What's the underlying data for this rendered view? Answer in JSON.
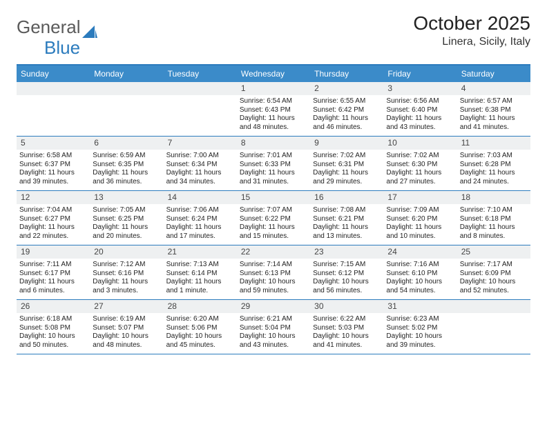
{
  "logo": {
    "text1": "General",
    "text2": "Blue"
  },
  "title": "October 2025",
  "location": "Linera, Sicily, Italy",
  "colors": {
    "header_bg": "#3b8bc9",
    "border": "#2b7bbd",
    "daynum_bg": "#eef0f1",
    "text": "#222222",
    "logo_gray": "#5a5a5a"
  },
  "day_names": [
    "Sunday",
    "Monday",
    "Tuesday",
    "Wednesday",
    "Thursday",
    "Friday",
    "Saturday"
  ],
  "weeks": [
    [
      null,
      null,
      null,
      {
        "n": "1",
        "sr": "6:54 AM",
        "ss": "6:43 PM",
        "dl": "11 hours and 48 minutes."
      },
      {
        "n": "2",
        "sr": "6:55 AM",
        "ss": "6:42 PM",
        "dl": "11 hours and 46 minutes."
      },
      {
        "n": "3",
        "sr": "6:56 AM",
        "ss": "6:40 PM",
        "dl": "11 hours and 43 minutes."
      },
      {
        "n": "4",
        "sr": "6:57 AM",
        "ss": "6:38 PM",
        "dl": "11 hours and 41 minutes."
      }
    ],
    [
      {
        "n": "5",
        "sr": "6:58 AM",
        "ss": "6:37 PM",
        "dl": "11 hours and 39 minutes."
      },
      {
        "n": "6",
        "sr": "6:59 AM",
        "ss": "6:35 PM",
        "dl": "11 hours and 36 minutes."
      },
      {
        "n": "7",
        "sr": "7:00 AM",
        "ss": "6:34 PM",
        "dl": "11 hours and 34 minutes."
      },
      {
        "n": "8",
        "sr": "7:01 AM",
        "ss": "6:33 PM",
        "dl": "11 hours and 31 minutes."
      },
      {
        "n": "9",
        "sr": "7:02 AM",
        "ss": "6:31 PM",
        "dl": "11 hours and 29 minutes."
      },
      {
        "n": "10",
        "sr": "7:02 AM",
        "ss": "6:30 PM",
        "dl": "11 hours and 27 minutes."
      },
      {
        "n": "11",
        "sr": "7:03 AM",
        "ss": "6:28 PM",
        "dl": "11 hours and 24 minutes."
      }
    ],
    [
      {
        "n": "12",
        "sr": "7:04 AM",
        "ss": "6:27 PM",
        "dl": "11 hours and 22 minutes."
      },
      {
        "n": "13",
        "sr": "7:05 AM",
        "ss": "6:25 PM",
        "dl": "11 hours and 20 minutes."
      },
      {
        "n": "14",
        "sr": "7:06 AM",
        "ss": "6:24 PM",
        "dl": "11 hours and 17 minutes."
      },
      {
        "n": "15",
        "sr": "7:07 AM",
        "ss": "6:22 PM",
        "dl": "11 hours and 15 minutes."
      },
      {
        "n": "16",
        "sr": "7:08 AM",
        "ss": "6:21 PM",
        "dl": "11 hours and 13 minutes."
      },
      {
        "n": "17",
        "sr": "7:09 AM",
        "ss": "6:20 PM",
        "dl": "11 hours and 10 minutes."
      },
      {
        "n": "18",
        "sr": "7:10 AM",
        "ss": "6:18 PM",
        "dl": "11 hours and 8 minutes."
      }
    ],
    [
      {
        "n": "19",
        "sr": "7:11 AM",
        "ss": "6:17 PM",
        "dl": "11 hours and 6 minutes."
      },
      {
        "n": "20",
        "sr": "7:12 AM",
        "ss": "6:16 PM",
        "dl": "11 hours and 3 minutes."
      },
      {
        "n": "21",
        "sr": "7:13 AM",
        "ss": "6:14 PM",
        "dl": "11 hours and 1 minute."
      },
      {
        "n": "22",
        "sr": "7:14 AM",
        "ss": "6:13 PM",
        "dl": "10 hours and 59 minutes."
      },
      {
        "n": "23",
        "sr": "7:15 AM",
        "ss": "6:12 PM",
        "dl": "10 hours and 56 minutes."
      },
      {
        "n": "24",
        "sr": "7:16 AM",
        "ss": "6:10 PM",
        "dl": "10 hours and 54 minutes."
      },
      {
        "n": "25",
        "sr": "7:17 AM",
        "ss": "6:09 PM",
        "dl": "10 hours and 52 minutes."
      }
    ],
    [
      {
        "n": "26",
        "sr": "6:18 AM",
        "ss": "5:08 PM",
        "dl": "10 hours and 50 minutes."
      },
      {
        "n": "27",
        "sr": "6:19 AM",
        "ss": "5:07 PM",
        "dl": "10 hours and 48 minutes."
      },
      {
        "n": "28",
        "sr": "6:20 AM",
        "ss": "5:06 PM",
        "dl": "10 hours and 45 minutes."
      },
      {
        "n": "29",
        "sr": "6:21 AM",
        "ss": "5:04 PM",
        "dl": "10 hours and 43 minutes."
      },
      {
        "n": "30",
        "sr": "6:22 AM",
        "ss": "5:03 PM",
        "dl": "10 hours and 41 minutes."
      },
      {
        "n": "31",
        "sr": "6:23 AM",
        "ss": "5:02 PM",
        "dl": "10 hours and 39 minutes."
      },
      null
    ]
  ],
  "labels": {
    "sunrise": "Sunrise:",
    "sunset": "Sunset:",
    "daylight": "Daylight:"
  }
}
